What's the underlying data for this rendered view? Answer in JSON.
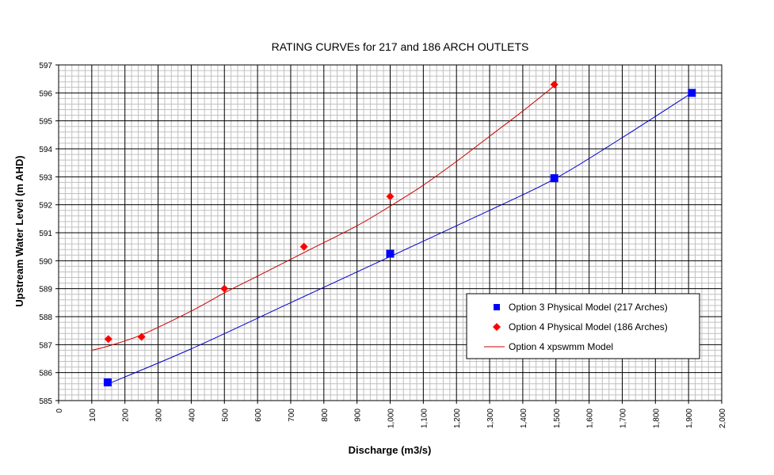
{
  "chart_data": {
    "type": "scatter",
    "title": "RATING CURVEs for 217 and 186 ARCH OUTLETS",
    "xlabel": "Discharge (m3/s)",
    "ylabel": "Upstream Water Level (m AHD)",
    "xlim": [
      0,
      2000
    ],
    "ylim": [
      585,
      597
    ],
    "x_ticks": [
      "0",
      "100",
      "200",
      "300",
      "400",
      "500",
      "600",
      "700",
      "800",
      "900",
      "1,000",
      "1,100",
      "1,200",
      "1,300",
      "1,400",
      "1,500",
      "1,600",
      "1,700",
      "1,800",
      "1,900",
      "2,000"
    ],
    "y_ticks": [
      "585",
      "586",
      "587",
      "588",
      "589",
      "590",
      "591",
      "592",
      "593",
      "594",
      "595",
      "596",
      "597"
    ],
    "grid": true,
    "legend_position": "lower-right",
    "series": [
      {
        "name": "Option 3 Physical Model (217 Arches)",
        "kind": "marker",
        "marker": "square",
        "color": "#0000ff",
        "points": [
          [
            148,
            585.65
          ],
          [
            1000,
            590.25
          ],
          [
            1495,
            592.95
          ],
          [
            1910,
            596.0
          ]
        ]
      },
      {
        "name": "Option 4 Physical Model (186 Arches)",
        "kind": "marker",
        "marker": "diamond",
        "color": "#ff0000",
        "points": [
          [
            150,
            587.2
          ],
          [
            250,
            587.28
          ],
          [
            500,
            589.0
          ],
          [
            740,
            590.5
          ],
          [
            1000,
            592.3
          ],
          [
            1495,
            596.3
          ]
        ]
      },
      {
        "name": "Option 4 xpswmm Model",
        "kind": "line",
        "color": "#cc0000",
        "points": [
          [
            100,
            586.8
          ],
          [
            150,
            586.95
          ],
          [
            250,
            587.35
          ],
          [
            400,
            588.2
          ],
          [
            500,
            588.85
          ],
          [
            600,
            589.45
          ],
          [
            750,
            590.35
          ],
          [
            900,
            591.25
          ],
          [
            1000,
            591.95
          ],
          [
            1100,
            592.7
          ],
          [
            1200,
            593.55
          ],
          [
            1300,
            594.45
          ],
          [
            1400,
            595.35
          ],
          [
            1500,
            596.3
          ]
        ]
      },
      {
        "name": "",
        "kind": "trendline",
        "color": "#0000cc",
        "points": [
          [
            150,
            585.6
          ],
          [
            400,
            586.85
          ],
          [
            700,
            588.5
          ],
          [
            1000,
            590.15
          ],
          [
            1300,
            591.8
          ],
          [
            1500,
            592.95
          ],
          [
            1700,
            594.4
          ],
          [
            1910,
            596.0
          ]
        ]
      }
    ]
  }
}
